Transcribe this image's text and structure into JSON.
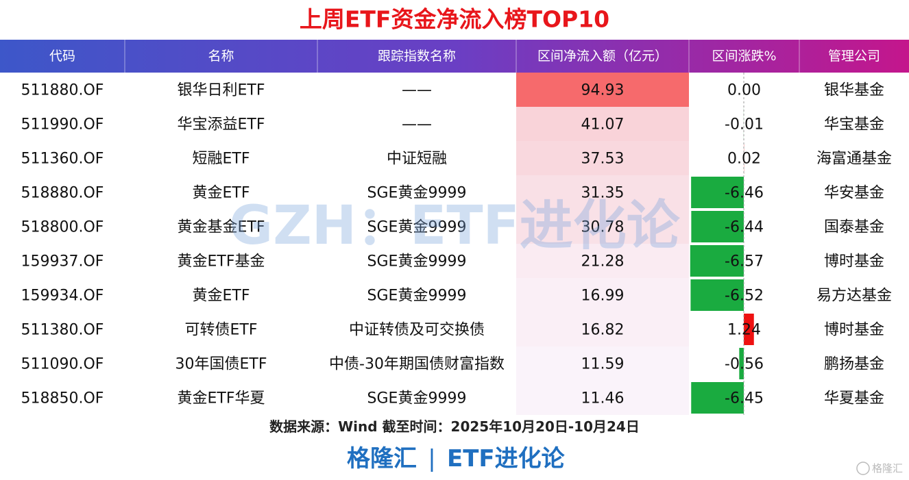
{
  "title": "上周ETF资金净流入榜TOP10",
  "table": {
    "header": [
      "代码",
      "名称",
      "跟踪指数名称",
      "区间净流入额（亿元）",
      "区间涨跌%",
      "管理公司"
    ],
    "rows": [
      [
        "511880.OF",
        "银华日利ETF",
        "——",
        "94.93",
        "0.00",
        "银华基金"
      ],
      [
        "511990.OF",
        "华宝添益ETF",
        "——",
        "41.07",
        "-0.01",
        "华宝基金"
      ],
      [
        "511360.OF",
        "短融ETF",
        "中证短融",
        "37.53",
        "0.02",
        "海富通基金"
      ],
      [
        "518880.OF",
        "黄金ETF",
        "SGE黄金9999",
        "31.35",
        "-6.46",
        "华安基金"
      ],
      [
        "518800.OF",
        "黄金基金ETF",
        "SGE黄金9999",
        "30.78",
        "-6.44",
        "国泰基金"
      ],
      [
        "159937.OF",
        "黄金ETF基金",
        "SGE黄金9999",
        "21.28",
        "-6.57",
        "博时基金"
      ],
      [
        "159934.OF",
        "黄金ETF",
        "SGE黄金9999",
        "16.99",
        "-6.52",
        "易方达基金"
      ],
      [
        "511380.OF",
        "可转债ETF",
        "中证转债及可交换债",
        "16.82",
        "1.24",
        "博时基金"
      ],
      [
        "511090.OF",
        "30年国债ETF",
        "中债-30年期国债财富指数",
        "11.59",
        "-0.56",
        "鹏扬基金"
      ],
      [
        "518850.OF",
        "黄金ETF华夏",
        "SGE黄金9999",
        "11.46",
        "-6.45",
        "华夏基金"
      ]
    ]
  },
  "watermark": "GZH：ETF进化论",
  "source": "数据来源：Wind 截至时间：2025年10月20日-10月24日",
  "brand": {
    "left": "格隆汇",
    "separator": "|",
    "right": "ETF进化论"
  },
  "logo": "格隆汇"
}
